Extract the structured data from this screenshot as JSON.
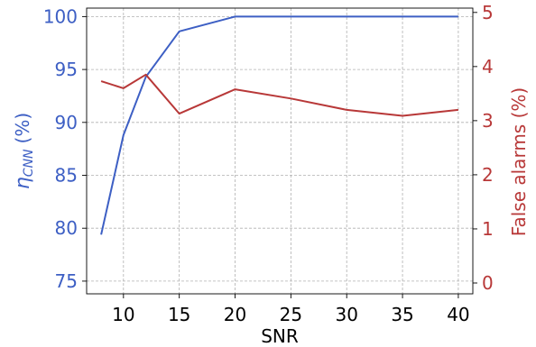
{
  "chart_data": {
    "type": "line",
    "xlabel": "SNR",
    "ylabel_left": {
      "main": "η",
      "sub": "CNN",
      "unit": "(%)"
    },
    "ylabel_right": "False alarms (%)",
    "x_ticks": [
      10,
      15,
      20,
      25,
      30,
      35,
      40
    ],
    "y_left_ticks": [
      75,
      80,
      85,
      90,
      95,
      100
    ],
    "y_right_ticks": [
      0,
      1,
      2,
      3,
      4,
      5
    ],
    "xlim": [
      6.7,
      41.3
    ],
    "ylim_left": [
      73.8,
      100.8
    ],
    "ylim_right": [
      -0.2,
      5.08
    ],
    "grid": true,
    "colors": {
      "left": "#3d5fc4",
      "right": "#b83838",
      "axis": "#000000"
    },
    "series": [
      {
        "axis": "left",
        "x": [
          8,
          10,
          12,
          15,
          20,
          25,
          30,
          35,
          40
        ],
        "values": [
          79.4,
          88.8,
          94.3,
          98.6,
          100,
          100,
          100,
          100,
          100
        ]
      },
      {
        "axis": "right",
        "x": [
          8,
          10,
          12,
          15,
          20,
          25,
          30,
          35,
          40
        ],
        "values": [
          3.73,
          3.6,
          3.85,
          3.13,
          3.58,
          3.41,
          3.2,
          3.09,
          3.2
        ]
      }
    ]
  }
}
